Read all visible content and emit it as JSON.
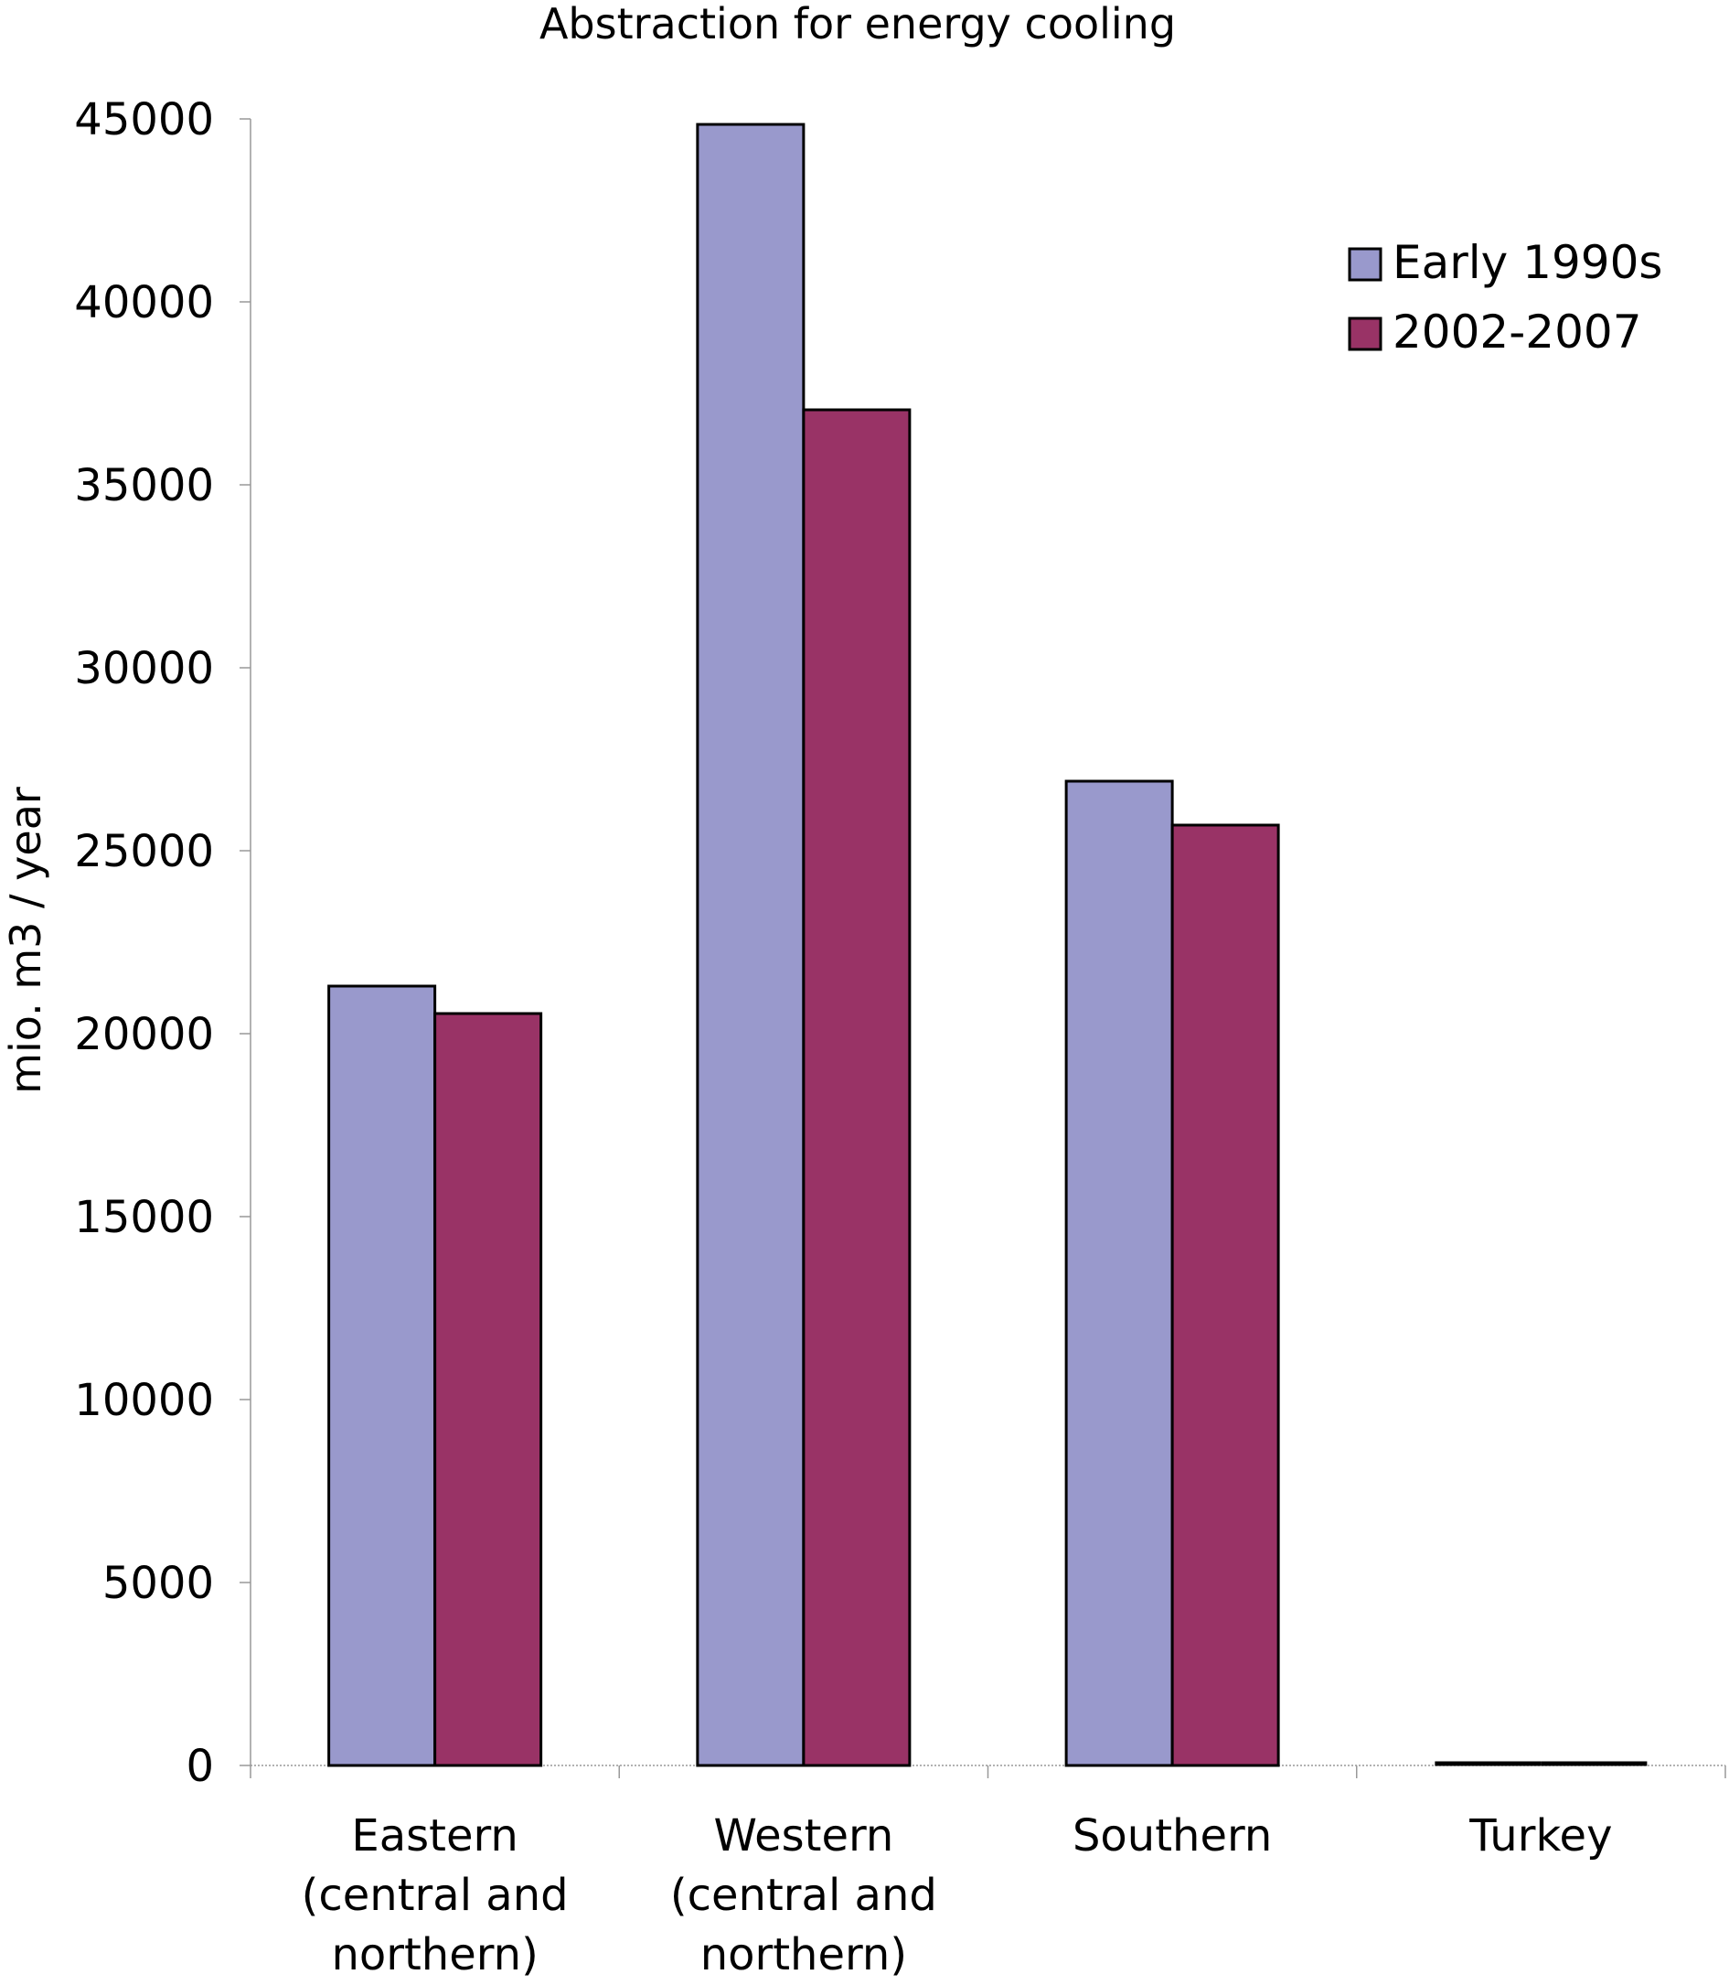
{
  "chart_data": {
    "type": "bar",
    "title": "Abstraction for energy cooling",
    "xlabel": "",
    "ylabel": "mio. m3 / year",
    "ylim": [
      0,
      45000
    ],
    "ytick_step": 5000,
    "yticks": [
      "0",
      "5000",
      "10000",
      "15000",
      "20000",
      "25000",
      "30000",
      "35000",
      "40000",
      "45000"
    ],
    "categories": [
      [
        "Eastern",
        "(central and",
        "northern)"
      ],
      [
        "Western",
        "(central and",
        "northern)"
      ],
      [
        "Southern"
      ],
      [
        "Turkey"
      ]
    ],
    "series": [
      {
        "name": "Early 1990s",
        "color": "#9999cc",
        "values": [
          21300,
          44850,
          26900,
          0
        ]
      },
      {
        "name": "2002-2007",
        "color": "#993366",
        "values": [
          20550,
          37050,
          25700,
          0
        ]
      }
    ],
    "grid": false,
    "legend_position": "top-right"
  }
}
